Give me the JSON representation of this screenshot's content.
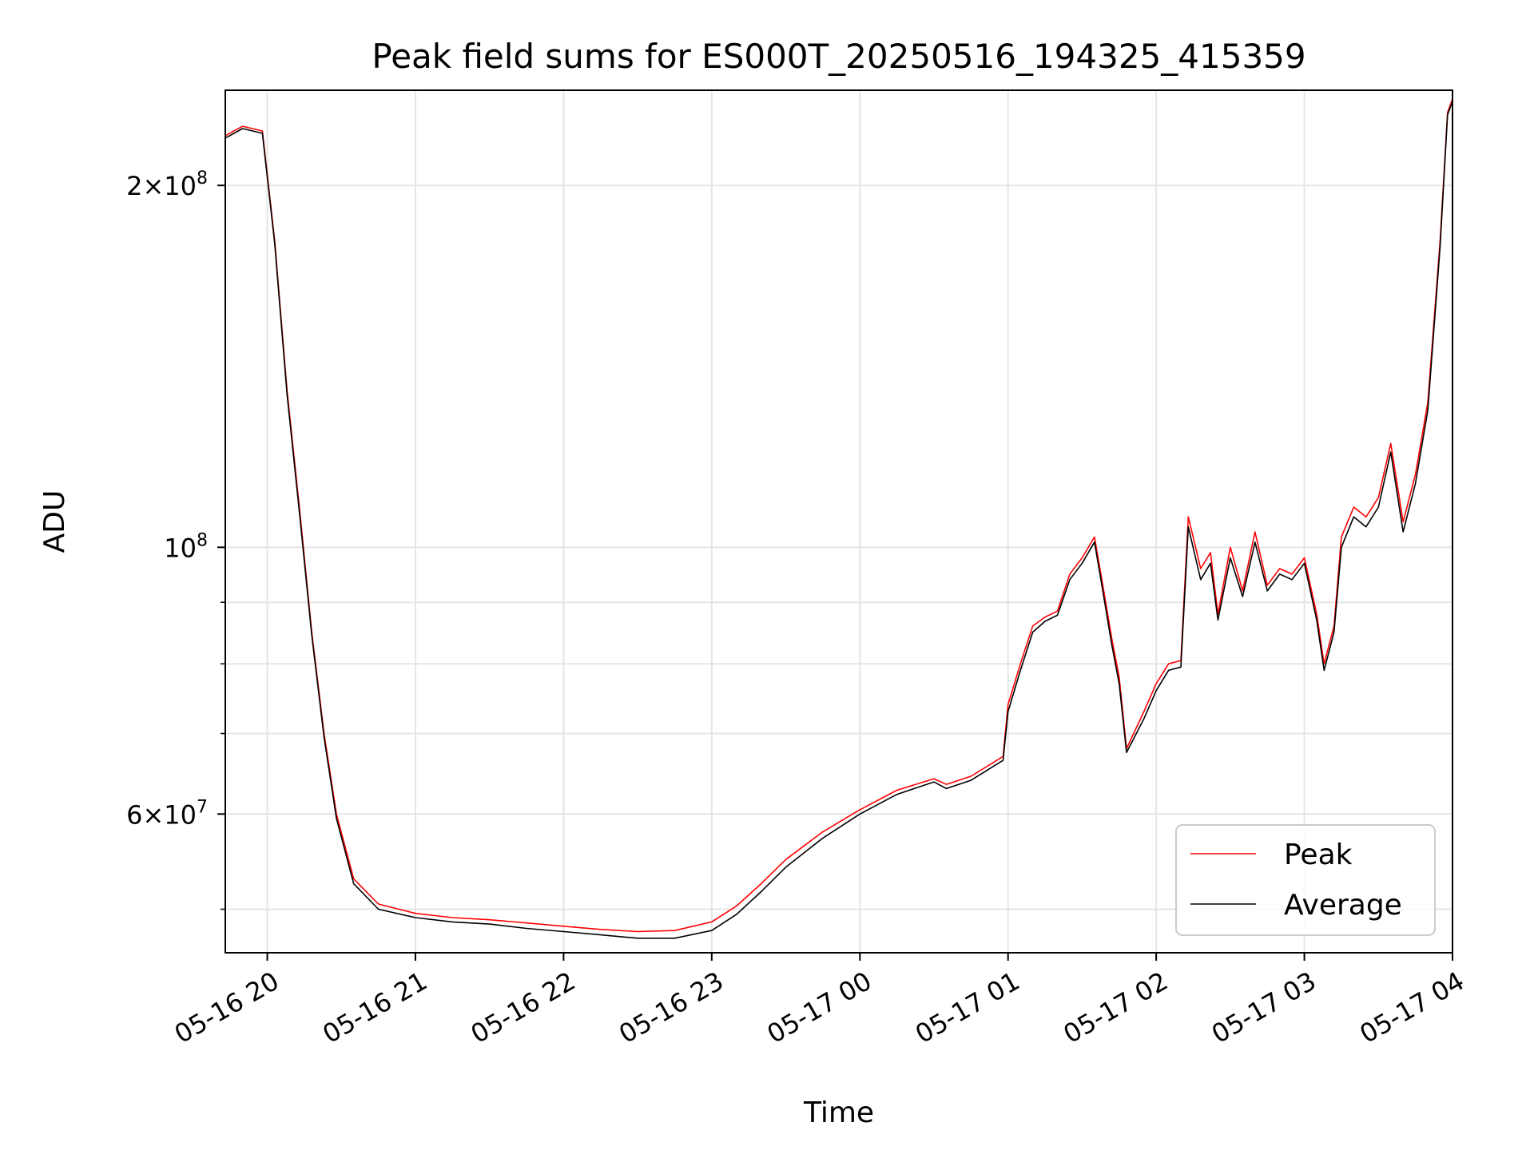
{
  "chart_data": {
    "type": "line",
    "title": "Peak field sums for ES000T_20250516_194325_415359",
    "xlabel": "Time",
    "ylabel": "ADU",
    "yscale": "log",
    "grid": true,
    "legend_position": "lower-right",
    "x_ticks": [
      "05-16 20",
      "05-16 21",
      "05-16 22",
      "05-16 23",
      "05-17 00",
      "05-17 01",
      "05-17 02",
      "05-17 03",
      "05-17 04"
    ],
    "y_tick_labels": [
      {
        "value": 200000000,
        "base": "2×10",
        "exp": "8"
      },
      {
        "value": 100000000,
        "base": "10",
        "exp": "8"
      },
      {
        "value": 60000000,
        "base": "6×10",
        "exp": "7"
      }
    ],
    "y_minor_ticks": [
      50000000,
      70000000,
      80000000,
      90000000
    ],
    "xlim": [
      "2025-05-16 19:43",
      "2025-05-17 04:00"
    ],
    "ylim": [
      46000000,
      240000000
    ],
    "series": [
      {
        "name": "Peak",
        "color": "#ff0000",
        "points": [
          [
            "2025-05-16 19:43",
            220000000
          ],
          [
            "2025-05-16 19:50",
            224000000
          ],
          [
            "2025-05-16 19:58",
            222000000
          ],
          [
            "2025-05-16 20:03",
            180000000
          ],
          [
            "2025-05-16 20:08",
            135000000
          ],
          [
            "2025-05-16 20:13",
            108000000
          ],
          [
            "2025-05-16 20:18",
            85000000
          ],
          [
            "2025-05-16 20:23",
            70000000
          ],
          [
            "2025-05-16 20:28",
            60000000
          ],
          [
            "2025-05-16 20:35",
            53000000
          ],
          [
            "2025-05-16 20:45",
            50500000
          ],
          [
            "2025-05-16 21:00",
            49600000
          ],
          [
            "2025-05-16 21:15",
            49200000
          ],
          [
            "2025-05-16 21:30",
            49000000
          ],
          [
            "2025-05-16 21:45",
            48700000
          ],
          [
            "2025-05-16 22:00",
            48400000
          ],
          [
            "2025-05-16 22:15",
            48100000
          ],
          [
            "2025-05-16 22:30",
            47900000
          ],
          [
            "2025-05-16 22:45",
            48000000
          ],
          [
            "2025-05-16 23:00",
            48800000
          ],
          [
            "2025-05-16 23:10",
            50300000
          ],
          [
            "2025-05-16 23:20",
            52500000
          ],
          [
            "2025-05-16 23:30",
            55000000
          ],
          [
            "2025-05-16 23:45",
            58000000
          ],
          [
            "2025-05-17 00:00",
            60500000
          ],
          [
            "2025-05-17 00:15",
            62800000
          ],
          [
            "2025-05-17 00:30",
            64200000
          ],
          [
            "2025-05-17 00:35",
            63500000
          ],
          [
            "2025-05-17 00:45",
            64500000
          ],
          [
            "2025-05-17 00:58",
            67000000
          ],
          [
            "2025-05-17 01:00",
            74000000
          ],
          [
            "2025-05-17 01:05",
            80000000
          ],
          [
            "2025-05-17 01:10",
            86000000
          ],
          [
            "2025-05-17 01:15",
            87500000
          ],
          [
            "2025-05-17 01:20",
            88500000
          ],
          [
            "2025-05-17 01:25",
            95000000
          ],
          [
            "2025-05-17 01:30",
            98000000
          ],
          [
            "2025-05-17 01:35",
            102000000
          ],
          [
            "2025-05-17 01:38",
            94000000
          ],
          [
            "2025-05-17 01:42",
            84000000
          ],
          [
            "2025-05-17 01:45",
            78000000
          ],
          [
            "2025-05-17 01:48",
            68000000
          ],
          [
            "2025-05-17 01:55",
            73000000
          ],
          [
            "2025-05-17 02:00",
            77000000
          ],
          [
            "2025-05-17 02:05",
            80000000
          ],
          [
            "2025-05-17 02:10",
            80500000
          ],
          [
            "2025-05-17 02:13",
            106000000
          ],
          [
            "2025-05-17 02:18",
            96000000
          ],
          [
            "2025-05-17 02:22",
            99000000
          ],
          [
            "2025-05-17 02:25",
            88000000
          ],
          [
            "2025-05-17 02:30",
            100000000
          ],
          [
            "2025-05-17 02:35",
            92000000
          ],
          [
            "2025-05-17 02:40",
            103000000
          ],
          [
            "2025-05-17 02:45",
            93000000
          ],
          [
            "2025-05-17 02:50",
            96000000
          ],
          [
            "2025-05-17 02:55",
            95000000
          ],
          [
            "2025-05-17 03:00",
            98000000
          ],
          [
            "2025-05-17 03:05",
            88000000
          ],
          [
            "2025-05-17 03:08",
            80000000
          ],
          [
            "2025-05-17 03:12",
            86000000
          ],
          [
            "2025-05-17 03:15",
            102000000
          ],
          [
            "2025-05-17 03:20",
            108000000
          ],
          [
            "2025-05-17 03:25",
            106000000
          ],
          [
            "2025-05-17 03:30",
            110000000
          ],
          [
            "2025-05-17 03:35",
            122000000
          ],
          [
            "2025-05-17 03:40",
            105000000
          ],
          [
            "2025-05-17 03:45",
            115000000
          ],
          [
            "2025-05-17 03:50",
            132000000
          ],
          [
            "2025-05-17 03:55",
            180000000
          ],
          [
            "2025-05-17 03:58",
            230000000
          ],
          [
            "2025-05-17 04:00",
            236000000
          ]
        ]
      },
      {
        "name": "Average",
        "color": "#000000",
        "points": [
          [
            "2025-05-16 19:43",
            219000000
          ],
          [
            "2025-05-16 19:50",
            223000000
          ],
          [
            "2025-05-16 19:58",
            221000000
          ],
          [
            "2025-05-16 20:03",
            179000000
          ],
          [
            "2025-05-16 20:08",
            134000000
          ],
          [
            "2025-05-16 20:13",
            107000000
          ],
          [
            "2025-05-16 20:18",
            84500000
          ],
          [
            "2025-05-16 20:23",
            69500000
          ],
          [
            "2025-05-16 20:28",
            59500000
          ],
          [
            "2025-05-16 20:35",
            52500000
          ],
          [
            "2025-05-16 20:45",
            50000000
          ],
          [
            "2025-05-16 21:00",
            49200000
          ],
          [
            "2025-05-16 21:15",
            48800000
          ],
          [
            "2025-05-16 21:30",
            48600000
          ],
          [
            "2025-05-16 21:45",
            48200000
          ],
          [
            "2025-05-16 22:00",
            47900000
          ],
          [
            "2025-05-16 22:15",
            47600000
          ],
          [
            "2025-05-16 22:30",
            47300000
          ],
          [
            "2025-05-16 22:45",
            47300000
          ],
          [
            "2025-05-16 23:00",
            48000000
          ],
          [
            "2025-05-16 23:10",
            49500000
          ],
          [
            "2025-05-16 23:20",
            51700000
          ],
          [
            "2025-05-16 23:30",
            54200000
          ],
          [
            "2025-05-16 23:45",
            57300000
          ],
          [
            "2025-05-17 00:00",
            60000000
          ],
          [
            "2025-05-17 00:15",
            62300000
          ],
          [
            "2025-05-17 00:30",
            63800000
          ],
          [
            "2025-05-17 00:35",
            63000000
          ],
          [
            "2025-05-17 00:45",
            64000000
          ],
          [
            "2025-05-17 00:58",
            66500000
          ],
          [
            "2025-05-17 01:00",
            73000000
          ],
          [
            "2025-05-17 01:05",
            79000000
          ],
          [
            "2025-05-17 01:10",
            85000000
          ],
          [
            "2025-05-17 01:15",
            86800000
          ],
          [
            "2025-05-17 01:20",
            87800000
          ],
          [
            "2025-05-17 01:25",
            94000000
          ],
          [
            "2025-05-17 01:30",
            97000000
          ],
          [
            "2025-05-17 01:35",
            101000000
          ],
          [
            "2025-05-17 01:38",
            93000000
          ],
          [
            "2025-05-17 01:42",
            83000000
          ],
          [
            "2025-05-17 01:45",
            77000000
          ],
          [
            "2025-05-17 01:48",
            67500000
          ],
          [
            "2025-05-17 01:55",
            72000000
          ],
          [
            "2025-05-17 02:00",
            76000000
          ],
          [
            "2025-05-17 02:05",
            79000000
          ],
          [
            "2025-05-17 02:10",
            79500000
          ],
          [
            "2025-05-17 02:13",
            104000000
          ],
          [
            "2025-05-17 02:18",
            94000000
          ],
          [
            "2025-05-17 02:22",
            97000000
          ],
          [
            "2025-05-17 02:25",
            87000000
          ],
          [
            "2025-05-17 02:30",
            98000000
          ],
          [
            "2025-05-17 02:35",
            91000000
          ],
          [
            "2025-05-17 02:40",
            101000000
          ],
          [
            "2025-05-17 02:45",
            92000000
          ],
          [
            "2025-05-17 02:50",
            95000000
          ],
          [
            "2025-05-17 02:55",
            94000000
          ],
          [
            "2025-05-17 03:00",
            97000000
          ],
          [
            "2025-05-17 03:05",
            87000000
          ],
          [
            "2025-05-17 03:08",
            79000000
          ],
          [
            "2025-05-17 03:12",
            85000000
          ],
          [
            "2025-05-17 03:15",
            100000000
          ],
          [
            "2025-05-17 03:20",
            106000000
          ],
          [
            "2025-05-17 03:25",
            104000000
          ],
          [
            "2025-05-17 03:30",
            108000000
          ],
          [
            "2025-05-17 03:35",
            120000000
          ],
          [
            "2025-05-17 03:40",
            103000000
          ],
          [
            "2025-05-17 03:45",
            113000000
          ],
          [
            "2025-05-17 03:50",
            130000000
          ],
          [
            "2025-05-17 03:55",
            178000000
          ],
          [
            "2025-05-17 03:58",
            229000000
          ],
          [
            "2025-05-17 04:00",
            235000000
          ]
        ]
      }
    ]
  }
}
